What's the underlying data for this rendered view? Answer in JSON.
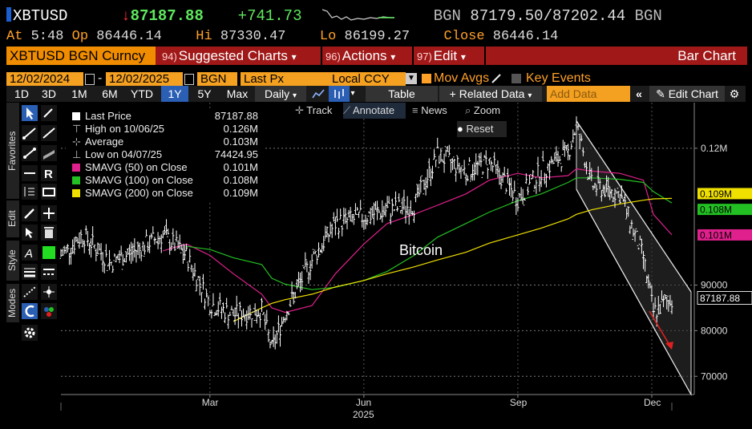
{
  "quote": {
    "ticker": "XBTUSD",
    "arrow": "↓",
    "last": "87187.88",
    "change": "+741.73",
    "source": "BGN",
    "bid": "87179.50",
    "ask": "87202.44",
    "source2": "BGN",
    "at_label": "At",
    "time": "5:48",
    "op_label": "Op",
    "open": "86446.14",
    "hi_label": "Hi",
    "high": "87330.47",
    "lo_label": "Lo",
    "low": "86199.27",
    "close_label": "Close",
    "close": "86446.14"
  },
  "menubar": {
    "security": "XBTUSD BGN Curncy",
    "m1_num": "94)",
    "m1": "Suggested Charts",
    "m2_num": "96)",
    "m2": "Actions",
    "m3_num": "97)",
    "m3": "Edit",
    "title": "Bar Chart",
    "caret": "▾"
  },
  "controls": {
    "start_date": "12/02/2024",
    "dash": "-",
    "end_date": "12/02/2025",
    "source": "BGN",
    "field": "Last Px",
    "currency": "Local CCY",
    "mov_avgs": "Mov Avgs",
    "key_events": "Key Events"
  },
  "toolbar": {
    "periods": [
      "1D",
      "3D",
      "1M",
      "6M",
      "YTD",
      "1Y",
      "5Y",
      "Max"
    ],
    "selected_period": "1Y",
    "frequency": "Daily",
    "table": "Table",
    "related": "+ Related Data",
    "add_data_placeholder": "Add Data",
    "edit_chart": "Edit Chart",
    "collapse": "«"
  },
  "side_tabs": {
    "favorites": "Favorites",
    "edit": "Edit",
    "style": "Style",
    "modes": "Modes"
  },
  "chart_tools": {
    "track": "Track",
    "annotate": "Annotate",
    "news": "News",
    "zoom": "Zoom",
    "reset": "Reset"
  },
  "legend": [
    {
      "label": "Last Price",
      "value": "87187.88",
      "color": "#ffffff"
    },
    {
      "label": "High on 10/06/25",
      "value": "0.126M",
      "color": ""
    },
    {
      "label": "Average",
      "value": "0.103M",
      "color": ""
    },
    {
      "label": "Low on 04/07/25",
      "value": "74424.95",
      "color": ""
    },
    {
      "label": "SMAVG (50)  on Close",
      "value": "0.101M",
      "color": "#e0208c"
    },
    {
      "label": "SMAVG (100)  on Close",
      "value": "0.108M",
      "color": "#22c022"
    },
    {
      "label": "SMAVG (200)  on Close",
      "value": "0.109M",
      "color": "#f0e000"
    }
  ],
  "colors": {
    "amber": "#ffa028",
    "menu_red": "#a01818",
    "price_bars": "#ffffff",
    "sma50": "#e0208c",
    "sma100": "#22c022",
    "sma200": "#f0e000",
    "channel": "#d0d0d0",
    "annotation_arrow": "#e02020"
  },
  "chart_data": {
    "type": "line",
    "annotation": "Bitcoin",
    "x_ticks": [
      "Mar",
      "Jun",
      "Sep",
      "Dec"
    ],
    "x_year": "2025",
    "y_ticks": [
      "70000",
      "80000",
      "90000",
      "0.12M"
    ],
    "y_tick_values": [
      70000,
      80000,
      90000,
      120000
    ],
    "ylim": [
      66000,
      130000
    ],
    "grid": true,
    "right_labels": {
      "sma200": "0.109M",
      "sma100": "0.108M",
      "sma50": "0.101M",
      "last": "87187.88"
    },
    "dates": [
      "2024-12-02",
      "2024-12-15",
      "2025-01-01",
      "2025-01-15",
      "2025-02-01",
      "2025-02-15",
      "2025-03-01",
      "2025-03-15",
      "2025-04-01",
      "2025-04-07",
      "2025-04-15",
      "2025-05-01",
      "2025-05-15",
      "2025-06-01",
      "2025-06-15",
      "2025-07-01",
      "2025-07-15",
      "2025-08-01",
      "2025-08-15",
      "2025-09-01",
      "2025-09-15",
      "2025-10-01",
      "2025-10-06",
      "2025-10-15",
      "2025-11-01",
      "2025-11-15",
      "2025-11-21",
      "2025-12-02"
    ],
    "series": [
      {
        "name": "Last Price",
        "values": [
          96500,
          101000,
          95000,
          97500,
          101000,
          96500,
          86000,
          83500,
          84500,
          76000,
          84000,
          95500,
          103500,
          105000,
          106500,
          107500,
          118500,
          115000,
          117000,
          109000,
          115000,
          119000,
          125000,
          112000,
          110000,
          96000,
          84000,
          87188
        ]
      },
      {
        "name": "SMAVG (50)",
        "values": [
          null,
          null,
          null,
          null,
          97500,
          99000,
          96500,
          92500,
          88000,
          85000,
          84000,
          85500,
          92500,
          99000,
          103500,
          105500,
          107500,
          110000,
          113000,
          114500,
          113500,
          114000,
          115500,
          115000,
          114500,
          113000,
          105500,
          101000
        ]
      },
      {
        "name": "SMAVG (100)",
        "values": [
          null,
          null,
          null,
          null,
          null,
          98500,
          97800,
          96000,
          94500,
          91500,
          90200,
          89000,
          89500,
          91000,
          93000,
          96500,
          100500,
          103500,
          106000,
          108500,
          110000,
          112500,
          113500,
          113500,
          113200,
          112500,
          110500,
          108000
        ]
      },
      {
        "name": "SMAVG (200)",
        "values": [
          null,
          null,
          null,
          null,
          null,
          null,
          null,
          82000,
          85000,
          86000,
          86800,
          88000,
          89600,
          91000,
          92500,
          94000,
          95500,
          97200,
          99200,
          101000,
          102500,
          104500,
          105500,
          106500,
          107800,
          108600,
          108900,
          109000
        ]
      }
    ]
  }
}
